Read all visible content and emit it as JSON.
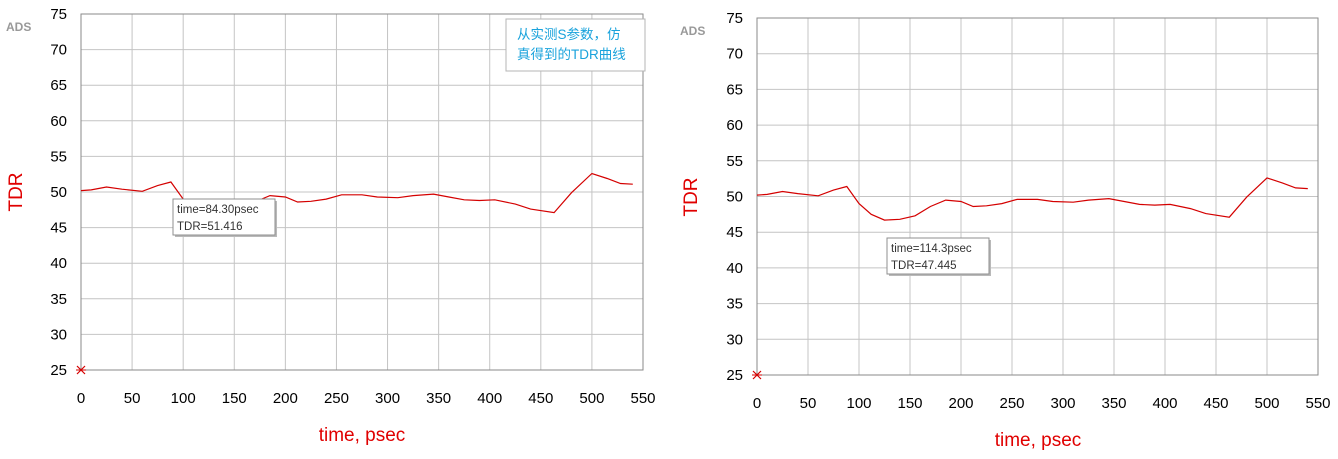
{
  "chart_data": [
    {
      "type": "line",
      "watermark": "ADS",
      "xlabel": "time, psec",
      "ylabel": "TDR",
      "xlim": [
        0,
        550
      ],
      "ylim": [
        25,
        75
      ],
      "xticks": [
        0,
        50,
        100,
        150,
        200,
        250,
        300,
        350,
        400,
        450,
        500,
        550
      ],
      "yticks": [
        25,
        30,
        35,
        40,
        45,
        50,
        55,
        60,
        65,
        70,
        75
      ],
      "grid": true,
      "line_color": "#d40000",
      "series": [
        {
          "x": [
            0,
            10,
            25,
            40,
            60,
            75,
            88,
            100,
            112,
            125,
            140,
            155,
            170,
            185,
            200,
            212,
            225,
            240,
            255,
            275,
            290,
            310,
            325,
            345,
            360,
            375,
            390,
            405,
            425,
            440,
            463,
            480,
            500,
            515,
            528,
            540
          ],
          "y": [
            50.2,
            50.3,
            50.7,
            50.4,
            50.1,
            50.9,
            51.4,
            49.0,
            47.5,
            46.7,
            46.8,
            47.3,
            48.6,
            49.5,
            49.3,
            48.6,
            48.7,
            49.0,
            49.6,
            49.6,
            49.3,
            49.2,
            49.5,
            49.7,
            49.3,
            48.9,
            48.8,
            48.9,
            48.3,
            47.6,
            47.1,
            49.9,
            52.6,
            51.9,
            51.2,
            51.1
          ]
        }
      ],
      "marker": {
        "x": 0,
        "y": 25
      },
      "marker_readout": {
        "time": "time=84.30psec",
        "value": "TDR=51.416"
      },
      "note": [
        "从实测S参数，仿",
        "真得到的TDR曲线"
      ]
    },
    {
      "type": "line",
      "watermark": "ADS",
      "xlabel": "time, psec",
      "ylabel": "TDR",
      "xlim": [
        0,
        550
      ],
      "ylim": [
        25,
        75
      ],
      "xticks": [
        0,
        50,
        100,
        150,
        200,
        250,
        300,
        350,
        400,
        450,
        500,
        550
      ],
      "yticks": [
        25,
        30,
        35,
        40,
        45,
        50,
        55,
        60,
        65,
        70,
        75
      ],
      "grid": true,
      "line_color": "#d40000",
      "series": [
        {
          "x": [
            0,
            10,
            25,
            40,
            60,
            75,
            88,
            100,
            112,
            125,
            140,
            155,
            170,
            185,
            200,
            212,
            225,
            240,
            255,
            275,
            290,
            310,
            325,
            345,
            360,
            375,
            390,
            405,
            425,
            440,
            463,
            480,
            500,
            515,
            528,
            540
          ],
          "y": [
            50.2,
            50.3,
            50.7,
            50.4,
            50.1,
            50.9,
            51.4,
            49.0,
            47.5,
            46.7,
            46.8,
            47.3,
            48.6,
            49.5,
            49.3,
            48.6,
            48.7,
            49.0,
            49.6,
            49.6,
            49.3,
            49.2,
            49.5,
            49.7,
            49.3,
            48.9,
            48.8,
            48.9,
            48.3,
            47.6,
            47.1,
            49.9,
            52.6,
            51.9,
            51.2,
            51.1
          ]
        }
      ],
      "marker": {
        "x": 0,
        "y": 25
      },
      "marker_readout": {
        "time": "time=114.3psec",
        "value": "TDR=47.445"
      }
    }
  ]
}
